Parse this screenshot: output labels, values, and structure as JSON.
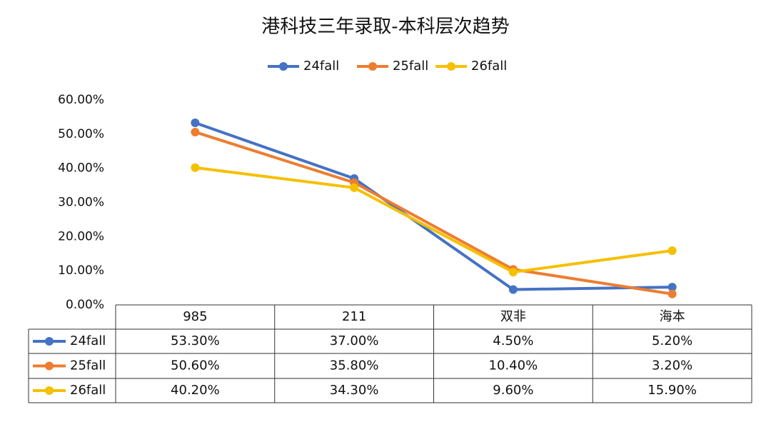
{
  "chart_data": {
    "type": "line",
    "title": "港科技三年录取-本科层次趋势",
    "categories": [
      "985",
      "211",
      "双非",
      "海本"
    ],
    "series": [
      {
        "name": "24fall",
        "color": "#4472c4",
        "values": [
          53.3,
          37.0,
          4.5,
          5.2
        ],
        "value_labels": [
          "53.30%",
          "37.00%",
          "4.50%",
          "5.20%"
        ]
      },
      {
        "name": "25fall",
        "color": "#ed7d31",
        "values": [
          50.6,
          35.8,
          10.4,
          3.2
        ],
        "value_labels": [
          "50.60%",
          "35.80%",
          "10.40%",
          "3.20%"
        ]
      },
      {
        "name": "26fall",
        "color": "#f5c000",
        "values": [
          40.2,
          34.3,
          9.6,
          15.9
        ],
        "value_labels": [
          "40.20%",
          "34.30%",
          "9.60%",
          "15.90%"
        ]
      }
    ],
    "ylim": [
      0,
      60
    ],
    "yticks": [
      {
        "value": 0,
        "label": "0.00%"
      },
      {
        "value": 10,
        "label": "10.00%"
      },
      {
        "value": 20,
        "label": "20.00%"
      },
      {
        "value": 30,
        "label": "30.00%"
      },
      {
        "value": 40,
        "label": "40.00%"
      },
      {
        "value": 50,
        "label": "50.00%"
      },
      {
        "value": 60,
        "label": "60.00%"
      }
    ]
  }
}
